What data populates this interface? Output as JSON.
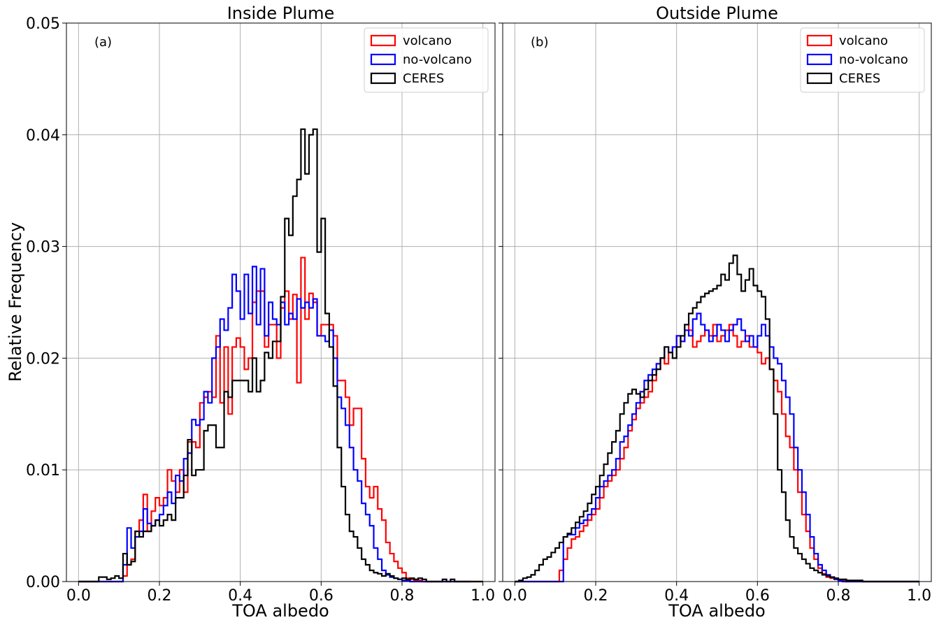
{
  "figure": {
    "ylabel": "Relative Frequency",
    "bin_width": 0.01,
    "colors": {
      "volcano": "#ff0000",
      "no-volcano": "#0000ff",
      "CERES": "#000000",
      "grid": "#b0b0b0"
    }
  },
  "chart_data": [
    {
      "type": "histogram-step",
      "title": "Inside Plume",
      "panel_label": "(a)",
      "xlabel": "TOA albedo",
      "ylabel": "Relative Frequency",
      "xlim": [
        -0.03,
        1.03
      ],
      "ylim": [
        0,
        0.05
      ],
      "xticks": [
        "0.0",
        "0.2",
        "0.4",
        "0.6",
        "0.8",
        "1.0"
      ],
      "yticks": [
        "0.00",
        "0.01",
        "0.02",
        "0.03",
        "0.04",
        "0.05"
      ],
      "grid": true,
      "legend_position": "top-right",
      "series": [
        {
          "name": "volcano",
          "color": "#ff0000",
          "bin_start": 0.0,
          "values": [
            0,
            0,
            0,
            0,
            0,
            0,
            0,
            0,
            0,
            0,
            0,
            0.0005,
            0.0015,
            0.002,
            0.0045,
            0.0055,
            0.0078,
            0.0045,
            0.0063,
            0.0075,
            0.0068,
            0.0075,
            0.01,
            0.009,
            0.008,
            0.01,
            0.008,
            0.0125,
            0.0125,
            0.012,
            0.016,
            0.0165,
            0.017,
            0.0165,
            0.022,
            0.016,
            0.021,
            0.015,
            0.021,
            0.0218,
            0.021,
            0.019,
            0.02,
            0.025,
            0.026,
            0.026,
            0.021,
            0.023,
            0.023,
            0.02,
            0.0245,
            0.026,
            0.0235,
            0.0257,
            0.0178,
            0.029,
            0.0235,
            0.0258,
            0.025,
            0.022,
            0.023,
            0.023,
            0.023,
            0.022,
            0.018,
            0.018,
            0.0165,
            0.014,
            0.0155,
            0.0155,
            0.011,
            0.0085,
            0.0075,
            0.0085,
            0.0065,
            0.0055,
            0.0035,
            0.0025,
            0.0018,
            0.0012,
            0.0008,
            0.0003,
            0.0002,
            0.0001,
            0.0001,
            0,
            0,
            0,
            0,
            0,
            0,
            0,
            0,
            0,
            0,
            0,
            0,
            0,
            0,
            0
          ]
        },
        {
          "name": "no-volcano",
          "color": "#0000ff",
          "bin_start": 0.0,
          "values": [
            0,
            0,
            0,
            0,
            0,
            0,
            0,
            0,
            0,
            0,
            0,
            0.0015,
            0.0048,
            0.003,
            0.004,
            0.0045,
            0.0065,
            0.0052,
            0.005,
            0.0055,
            0.006,
            0.0068,
            0.008,
            0.007,
            0.0095,
            0.009,
            0.011,
            0.0115,
            0.0145,
            0.014,
            0.0145,
            0.017,
            0.016,
            0.02,
            0.021,
            0.0235,
            0.0225,
            0.0245,
            0.0275,
            0.026,
            0.0235,
            0.0275,
            0.024,
            0.0282,
            0.023,
            0.028,
            0.022,
            0.025,
            0.0235,
            0.023,
            0.025,
            0.023,
            0.024,
            0.0235,
            0.0253,
            0.0245,
            0.025,
            0.0245,
            0.0253,
            0.022,
            0.022,
            0.0215,
            0.0225,
            0.02,
            0.0165,
            0.0155,
            0.014,
            0.012,
            0.01,
            0.009,
            0.007,
            0.006,
            0.005,
            0.003,
            0.002,
            0.001,
            0.0006,
            0.0004,
            0.0003,
            0.0002,
            0.0001,
            0.0001,
            0,
            0,
            0,
            0,
            0,
            0,
            0,
            0,
            0,
            0,
            0,
            0,
            0,
            0,
            0
          ]
        },
        {
          "name": "CERES",
          "color": "#000000",
          "bin_start": 0.0,
          "values": [
            0,
            0,
            0,
            0,
            0,
            0.0004,
            0.0004,
            0.0002,
            0.0003,
            0.0005,
            0.0003,
            0.0025,
            0.0015,
            0.0018,
            0.0045,
            0.004,
            0.0045,
            0.0045,
            0.005,
            0.0055,
            0.005,
            0.0055,
            0.006,
            0.0055,
            0.0075,
            0.0075,
            0.0095,
            0.0127,
            0.0095,
            0.01,
            0.01,
            0.0135,
            0.014,
            0.014,
            0.012,
            0.012,
            0.017,
            0.0165,
            0.018,
            0.018,
            0.018,
            0.018,
            0.017,
            0.02,
            0.017,
            0.018,
            0.0205,
            0.02,
            0.0215,
            0.0215,
            0.0255,
            0.0325,
            0.031,
            0.0345,
            0.036,
            0.0405,
            0.0365,
            0.04,
            0.0405,
            0.0295,
            0.0325,
            0.024,
            0.021,
            0.0175,
            0.012,
            0.0085,
            0.006,
            0.0045,
            0.004,
            0.003,
            0.002,
            0.0015,
            0.001,
            0.0008,
            0.0007,
            0.0005,
            0.0007,
            0.0005,
            0.0003,
            0.0002,
            0.0003,
            0.0002,
            0.0003,
            0.0002,
            0.0003,
            0.0002,
            0,
            0,
            0,
            0,
            0.0002,
            0,
            0.0002,
            0,
            0,
            0,
            0,
            0,
            0,
            0
          ]
        }
      ]
    },
    {
      "type": "histogram-step",
      "title": "Outside Plume",
      "panel_label": "(b)",
      "xlabel": "TOA albedo",
      "ylabel": "",
      "xlim": [
        -0.03,
        1.03
      ],
      "ylim": [
        0,
        0.05
      ],
      "xticks": [
        "0.0",
        "0.2",
        "0.4",
        "0.6",
        "0.8",
        "1.0"
      ],
      "yticks": [],
      "grid": true,
      "legend_position": "top-right",
      "series": [
        {
          "name": "volcano",
          "color": "#ff0000",
          "bin_start": 0.0,
          "values": [
            0,
            0,
            0,
            0,
            0,
            0,
            0,
            0,
            0,
            0,
            0,
            0.001,
            0.002,
            0.003,
            0.0038,
            0.004,
            0.0045,
            0.005,
            0.0055,
            0.006,
            0.0065,
            0.0075,
            0.0085,
            0.009,
            0.0095,
            0.01,
            0.011,
            0.012,
            0.0135,
            0.0145,
            0.0155,
            0.016,
            0.0165,
            0.017,
            0.018,
            0.019,
            0.02,
            0.0195,
            0.0205,
            0.021,
            0.022,
            0.0215,
            0.023,
            0.0225,
            0.021,
            0.0215,
            0.022,
            0.0225,
            0.022,
            0.023,
            0.0215,
            0.022,
            0.0225,
            0.023,
            0.022,
            0.021,
            0.0215,
            0.022,
            0.021,
            0.021,
            0.0205,
            0.0195,
            0.02,
            0.019,
            0.018,
            0.017,
            0.015,
            0.013,
            0.012,
            0.01,
            0.008,
            0.006,
            0.0045,
            0.003,
            0.002,
            0.0012,
            0.0007,
            0.0004,
            0.0003,
            0.0002,
            0.0001,
            0.0001,
            0,
            0,
            0,
            0,
            0,
            0,
            0,
            0,
            0,
            0,
            0,
            0,
            0,
            0,
            0,
            0,
            0,
            0
          ]
        },
        {
          "name": "no-volcano",
          "color": "#0000ff",
          "bin_start": 0.0,
          "values": [
            0,
            0,
            0,
            0,
            0,
            0,
            0,
            0,
            0,
            0,
            0,
            0,
            0.004,
            0.0042,
            0.0042,
            0.0048,
            0.0052,
            0.0055,
            0.006,
            0.0065,
            0.0075,
            0.0085,
            0.009,
            0.0095,
            0.01,
            0.011,
            0.0125,
            0.013,
            0.014,
            0.015,
            0.016,
            0.017,
            0.018,
            0.0185,
            0.019,
            0.0195,
            0.02,
            0.021,
            0.0205,
            0.021,
            0.022,
            0.0215,
            0.0225,
            0.022,
            0.0235,
            0.024,
            0.023,
            0.0225,
            0.0215,
            0.022,
            0.023,
            0.0225,
            0.0215,
            0.0225,
            0.023,
            0.0235,
            0.0225,
            0.0215,
            0.022,
            0.021,
            0.022,
            0.023,
            0.022,
            0.021,
            0.02,
            0.0195,
            0.018,
            0.0165,
            0.015,
            0.012,
            0.01,
            0.008,
            0.006,
            0.004,
            0.0025,
            0.0015,
            0.001,
            0.0006,
            0.0004,
            0.0002,
            0.0001,
            0,
            0,
            0,
            0,
            0,
            0,
            0,
            0,
            0,
            0,
            0,
            0,
            0,
            0,
            0,
            0,
            0,
            0,
            0
          ]
        },
        {
          "name": "CERES",
          "color": "#000000",
          "bin_start": 0.0,
          "values": [
            0,
            0.0001,
            0.0003,
            0.0004,
            0.0006,
            0.001,
            0.0015,
            0.002,
            0.0022,
            0.0026,
            0.003,
            0.0035,
            0.004,
            0.0043,
            0.0048,
            0.0053,
            0.0058,
            0.0063,
            0.007,
            0.0078,
            0.0085,
            0.0095,
            0.0105,
            0.0115,
            0.0125,
            0.0135,
            0.015,
            0.016,
            0.0168,
            0.0172,
            0.0168,
            0.0165,
            0.0172,
            0.018,
            0.0185,
            0.019,
            0.02,
            0.021,
            0.0205,
            0.02,
            0.021,
            0.022,
            0.023,
            0.024,
            0.0245,
            0.025,
            0.0255,
            0.0258,
            0.026,
            0.0262,
            0.0265,
            0.0275,
            0.027,
            0.0285,
            0.0292,
            0.0275,
            0.026,
            0.027,
            0.028,
            0.0265,
            0.026,
            0.0255,
            0.0235,
            0.019,
            0.015,
            0.01,
            0.008,
            0.0055,
            0.004,
            0.003,
            0.0025,
            0.002,
            0.0016,
            0.0012,
            0.001,
            0.0008,
            0.0006,
            0.0005,
            0.0004,
            0.0003,
            0.0002,
            0.0002,
            0.0001,
            0.0001,
            0.0001,
            0.0001,
            0,
            0,
            0,
            0,
            0,
            0,
            0,
            0,
            0,
            0,
            0,
            0,
            0,
            0
          ]
        }
      ]
    }
  ]
}
